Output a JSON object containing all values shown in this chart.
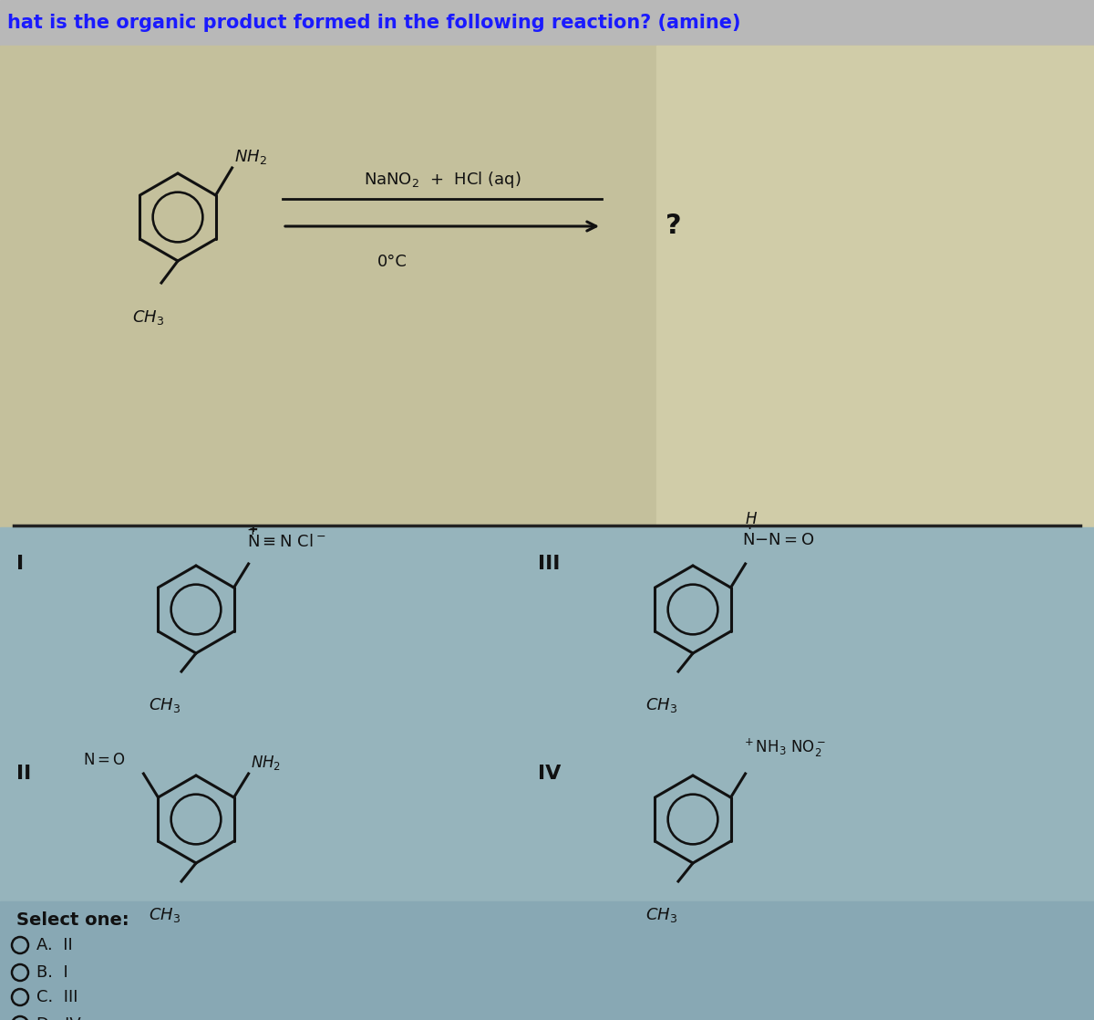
{
  "title": "hat is the organic product formed in the following reaction? (amine)",
  "title_color": "#1a1aff",
  "bg_top": "#c0c0c0",
  "bg_reaction_left": "#c8c4a0",
  "bg_reaction_right": "#d8d4b4",
  "bg_answer": "#9ab8c0",
  "bg_select": "#88aab4",
  "divider_color": "#333333",
  "struct_color": "#111111",
  "reaction_above": "NaNO₂  +  HCl (aq)",
  "reaction_below": "0°C",
  "question_mark": "?",
  "select_label": "Select one:",
  "options": [
    "A.  II",
    "B.  I",
    "C.  III",
    "D.  IV"
  ]
}
